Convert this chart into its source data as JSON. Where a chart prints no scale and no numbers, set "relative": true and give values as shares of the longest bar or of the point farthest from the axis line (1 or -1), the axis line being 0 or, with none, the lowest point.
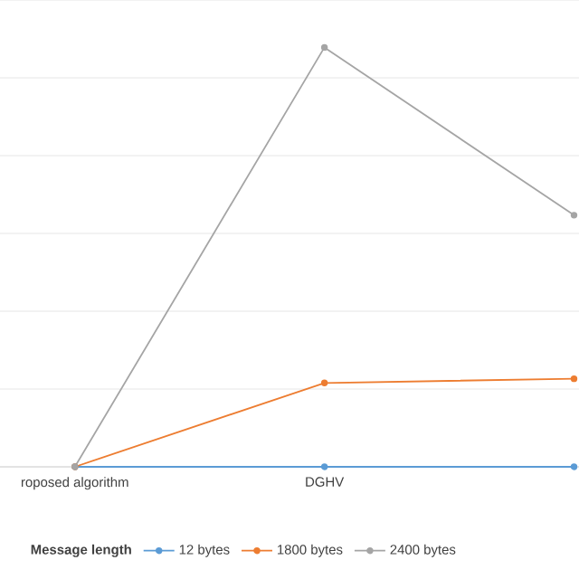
{
  "chart_data": {
    "type": "line",
    "relative": true,
    "categories": [
      "roposed algorithm",
      "DGHV",
      null
    ],
    "series": [
      {
        "name": "12 bytes",
        "color": "#5b9bd5",
        "values": [
          0,
          0,
          0
        ]
      },
      {
        "name": "1800 bytes",
        "color": "#ed7d31",
        "values": [
          0,
          0.2,
          0.21
        ]
      },
      {
        "name": "2400 bytes",
        "color": "#a5a5a5",
        "values": [
          0,
          1,
          0.6
        ]
      }
    ],
    "legend_title": "Message length",
    "legend": "bottom",
    "grid": "y",
    "marker": "circle",
    "line_style": "solid"
  }
}
